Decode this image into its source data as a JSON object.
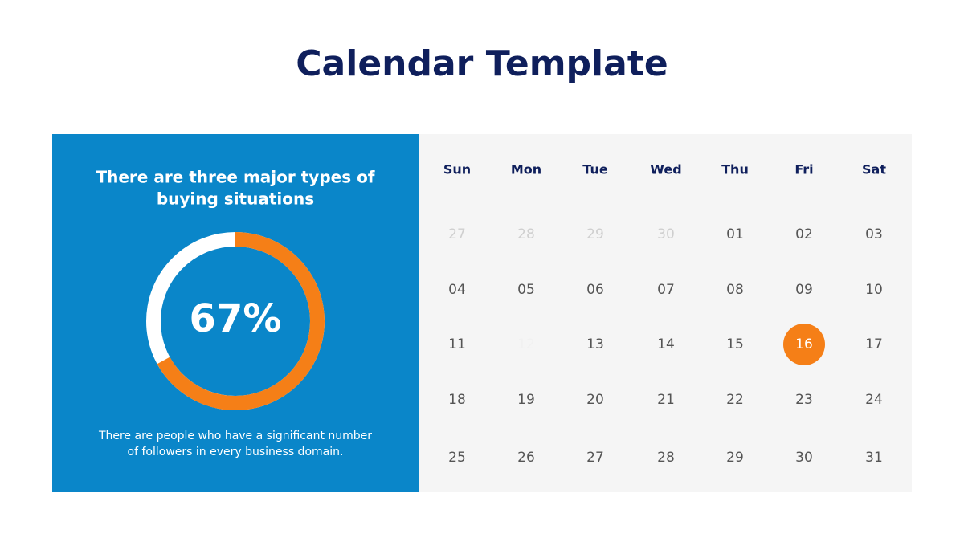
{
  "title": "Calendar Template",
  "panel": {
    "heading": [
      "There are three major types of",
      "buying situations"
    ],
    "donut": {
      "value": 67,
      "label": "67%",
      "color": "#f57f17",
      "track_color": "#ffffff"
    },
    "note": [
      "There are people who have a significant number",
      "of followers in every business domain."
    ]
  },
  "calendar": {
    "days": [
      "Sun",
      "Mon",
      "Tue",
      "Wed",
      "Thu",
      "Fri",
      "Sat"
    ],
    "weeks": [
      [
        "27",
        "28",
        "29",
        "30",
        "01",
        "02",
        "03"
      ],
      [
        "04",
        "05",
        "06",
        "07",
        "08",
        "09",
        "10"
      ],
      [
        "11",
        "12",
        "13",
        "14",
        "15",
        "16",
        "17"
      ],
      [
        "18",
        "19",
        "20",
        "21",
        "22",
        "23",
        "24"
      ],
      [
        "25",
        "26",
        "27",
        "28",
        "29",
        "30",
        "31"
      ]
    ],
    "highlight_color": "#f57f17"
  }
}
